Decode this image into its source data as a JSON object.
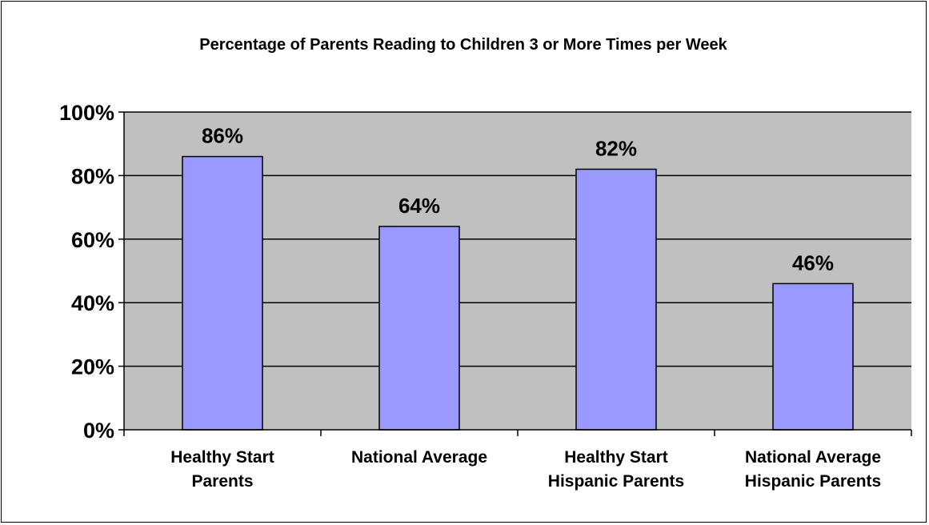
{
  "chart_data": {
    "type": "bar",
    "title": "Percentage of Parents Reading to Children 3 or More Times per Week",
    "categories": [
      [
        "Healthy Start",
        "Parents"
      ],
      [
        "National Average"
      ],
      [
        "Healthy Start",
        "Hispanic Parents"
      ],
      [
        "National Average",
        "Hispanic Parents"
      ]
    ],
    "values": [
      86,
      64,
      82,
      46
    ],
    "data_labels": [
      "86%",
      "64%",
      "82%",
      "46%"
    ],
    "ylim": [
      0,
      100
    ],
    "yticks": [
      0,
      20,
      40,
      60,
      80,
      100
    ],
    "ytick_labels": [
      "0%",
      "20%",
      "40%",
      "60%",
      "80%",
      "100%"
    ],
    "xlabel": "",
    "ylabel": "",
    "grid": true,
    "legend": "none",
    "colors": {
      "bar_fill": "#9999ff",
      "plot_background": "#c0c0c0",
      "gridline": "#000000"
    }
  }
}
